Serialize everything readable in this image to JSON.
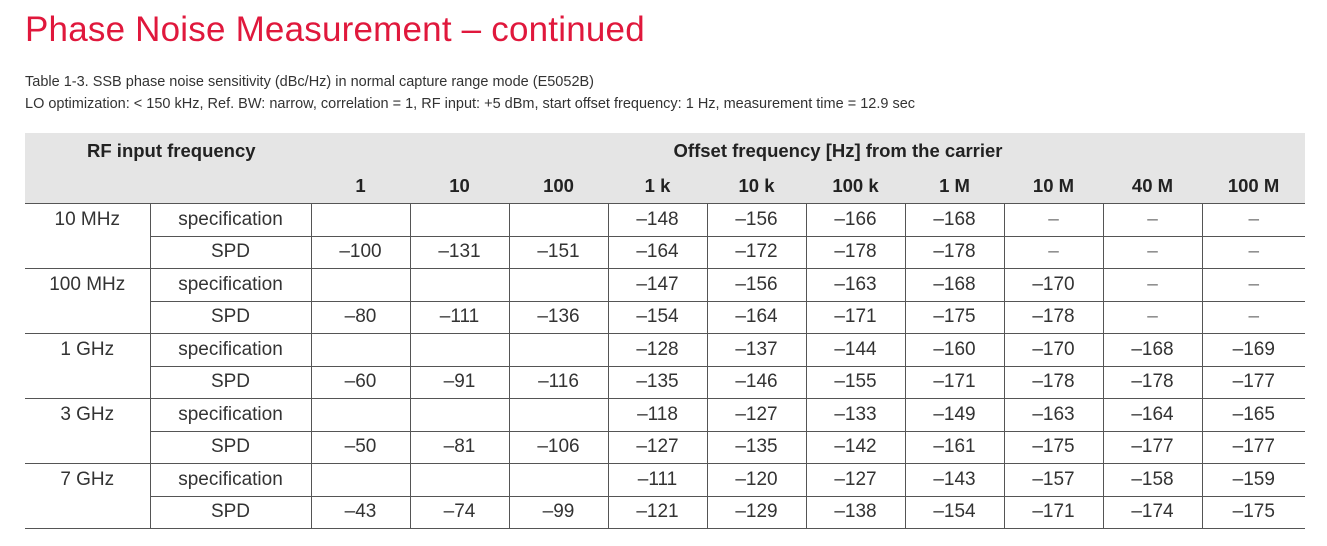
{
  "title": "Phase Noise Measurement – continued",
  "caption_line1": "Table 1-3. SSB phase noise sensitivity (dBc/Hz) in normal capture range mode (E5052B)",
  "caption_line2": "LO optimization: < 150 kHz, Ref. BW: narrow, correlation = 1, RF input: +5 dBm, start offset frequency: 1 Hz, measurement time = 12.9 sec",
  "table": {
    "header_left": "RF input frequency",
    "header_group": "Offset frequency [Hz] from the carrier",
    "offsets": [
      "1",
      "10",
      "100",
      "1 k",
      "10 k",
      "100 k",
      "1 M",
      "10 M",
      "40 M",
      "100 M"
    ],
    "groups": [
      {
        "freq": "10 MHz",
        "rows": [
          {
            "type": "specification",
            "values": [
              "",
              "",
              "",
              "–148",
              "–156",
              "–166",
              "–168",
              "–",
              "–",
              "–"
            ]
          },
          {
            "type": "SPD",
            "values": [
              "–100",
              "–131",
              "–151",
              "–164",
              "–172",
              "–178",
              "–178",
              "–",
              "–",
              "–"
            ]
          }
        ]
      },
      {
        "freq": "100 MHz",
        "rows": [
          {
            "type": "specification",
            "values": [
              "",
              "",
              "",
              "–147",
              "–156",
              "–163",
              "–168",
              "–170",
              "–",
              "–"
            ]
          },
          {
            "type": "SPD",
            "values": [
              "–80",
              "–111",
              "–136",
              "–154",
              "–164",
              "–171",
              "–175",
              "–178",
              "–",
              "–"
            ]
          }
        ]
      },
      {
        "freq": "1 GHz",
        "rows": [
          {
            "type": "specification",
            "values": [
              "",
              "",
              "",
              "–128",
              "–137",
              "–144",
              "–160",
              "–170",
              "–168",
              "–169"
            ]
          },
          {
            "type": "SPD",
            "values": [
              "–60",
              "–91",
              "–116",
              "–135",
              "–146",
              "–155",
              "–171",
              "–178",
              "–178",
              "–177"
            ]
          }
        ]
      },
      {
        "freq": "3 GHz",
        "rows": [
          {
            "type": "specification",
            "values": [
              "",
              "",
              "",
              "–118",
              "–127",
              "–133",
              "–149",
              "–163",
              "–164",
              "–165"
            ]
          },
          {
            "type": "SPD",
            "values": [
              "–50",
              "–81",
              "–106",
              "–127",
              "–135",
              "–142",
              "–161",
              "–175",
              "–177",
              "–177"
            ]
          }
        ]
      },
      {
        "freq": "7 GHz",
        "rows": [
          {
            "type": "specification",
            "values": [
              "",
              "",
              "",
              "–111",
              "–120",
              "–127",
              "–143",
              "–157",
              "–158",
              "–159"
            ]
          },
          {
            "type": "SPD",
            "values": [
              "–43",
              "–74",
              "–99",
              "–121",
              "–129",
              "–138",
              "–154",
              "–171",
              "–174",
              "–175"
            ]
          }
        ]
      }
    ]
  }
}
